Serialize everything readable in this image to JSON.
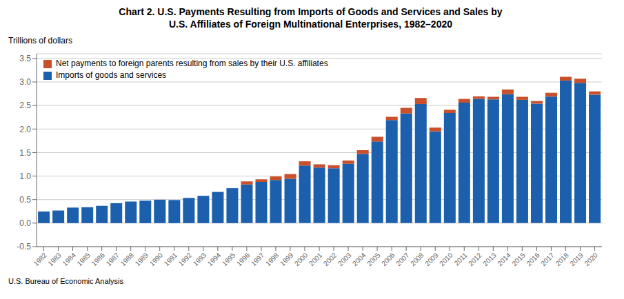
{
  "chart_data": {
    "type": "bar",
    "title": "Chart 2. U.S. Payments Resulting from Imports of Goods and Services and Sales by\nU.S. Affiliates of Foreign Multinational Enterprises, 1982–2020",
    "ylabel": "Trillions of dollars",
    "annotations": [
      "U.S. Bureau of Economic Analysis"
    ],
    "categories": [
      "1982",
      "1983",
      "1984",
      "1985",
      "1986",
      "1987",
      "1988",
      "1989",
      "1990",
      "1991",
      "1992",
      "1993",
      "1994",
      "1995",
      "1996",
      "1997",
      "1998",
      "1999",
      "2000",
      "2001",
      "2002",
      "2003",
      "2004",
      "2005",
      "2006",
      "2007",
      "2008",
      "2009",
      "2010",
      "2011",
      "2012",
      "2013",
      "2014",
      "2015",
      "2016",
      "2017",
      "2018",
      "2019",
      "2020"
    ],
    "series": [
      {
        "name": "Imports of goods and services",
        "color": "#1b5fad",
        "values": [
          0.247,
          0.268,
          0.33,
          0.338,
          0.368,
          0.424,
          0.459,
          0.477,
          0.498,
          0.491,
          0.536,
          0.58,
          0.663,
          0.743,
          0.822,
          0.876,
          0.917,
          0.942,
          1.224,
          1.18,
          1.165,
          1.26,
          1.47,
          1.735,
          2.19,
          2.33,
          2.53,
          1.95,
          2.34,
          2.56,
          2.64,
          2.63,
          2.74,
          2.62,
          2.54,
          2.69,
          3.03,
          2.98,
          2.73
        ]
      },
      {
        "name": "Net payments to foreign parents resulting from sales by their U.S. affiliates",
        "color": "#c9502a",
        "values": [
          0.0,
          0.0,
          0.0,
          0.0,
          0.0,
          0.0,
          0.0,
          0.0,
          0.0,
          0.0,
          0.0,
          0.0,
          0.0,
          0.0,
          0.065,
          0.055,
          0.075,
          0.1,
          0.09,
          0.07,
          0.065,
          0.07,
          0.08,
          0.1,
          0.07,
          0.12,
          0.13,
          0.08,
          0.07,
          0.08,
          0.055,
          0.055,
          0.1,
          0.065,
          0.055,
          0.08,
          0.08,
          0.09,
          0.07
        ]
      }
    ],
    "ylim": [
      -0.5,
      3.6
    ],
    "yticks": [
      -0.5,
      {
        "value": 0.0,
        "label": "0.0"
      },
      0.5,
      {
        "value": 1.0,
        "label": "1.0"
      },
      1.5,
      {
        "value": 2.0,
        "label": "2.0"
      },
      2.5,
      {
        "value": 3.0,
        "label": "3.0"
      },
      3.5
    ],
    "grid": true,
    "stacked": true,
    "legend": "upper left"
  }
}
